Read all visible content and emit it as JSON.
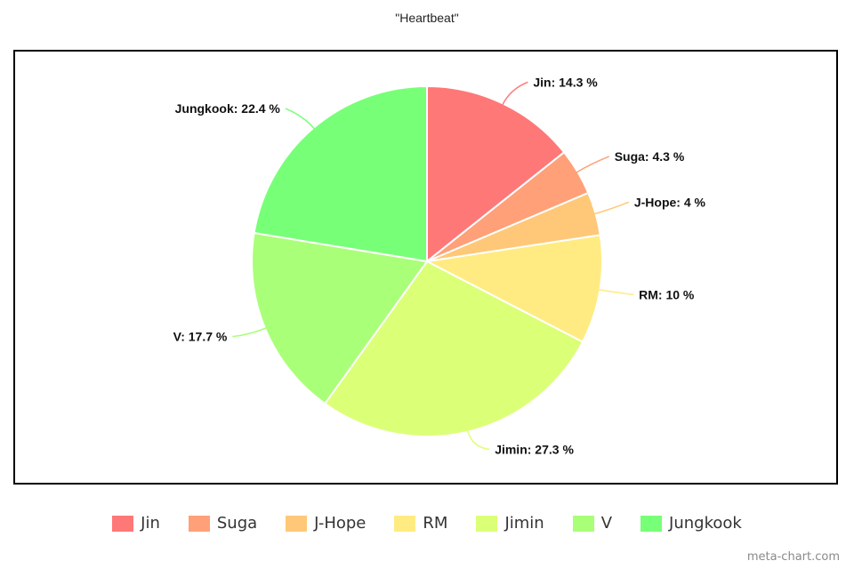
{
  "chart_data": {
    "type": "pie",
    "title": "\"Heartbeat\"",
    "categories": [
      "Jin",
      "Suga",
      "J-Hope",
      "RM",
      "Jimin",
      "V",
      "Jungkook"
    ],
    "values": [
      14.3,
      4.3,
      4,
      10,
      27.3,
      17.7,
      22.4
    ],
    "labels": [
      "Jin: 14.3 %",
      "Suga: 4.3 %",
      "J-Hope: 4 %",
      "RM: 10 %",
      "Jimin: 27.3 %",
      "V: 17.7 %",
      "Jungkook: 22.4 %"
    ],
    "colors": [
      "#ff7878",
      "#ffa078",
      "#ffc878",
      "#ffeb82",
      "#dcff78",
      "#aaff78",
      "#78ff78"
    ],
    "legend_position": "bottom"
  },
  "watermark": "meta-chart.com"
}
